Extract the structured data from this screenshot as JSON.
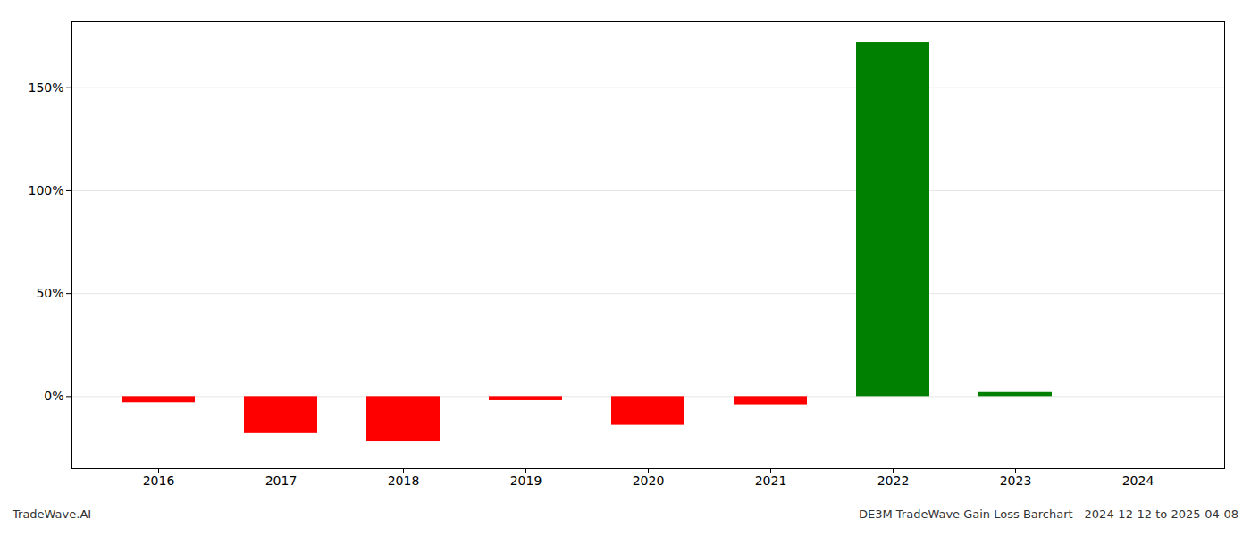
{
  "chart_data": {
    "type": "bar",
    "title": "DE3M TradeWave Gain Loss Barchart - 2024-12-12 to 2025-04-08",
    "annotations": [
      "TradeWave.AI"
    ],
    "categories": [
      "2016",
      "2017",
      "2018",
      "2019",
      "2020",
      "2021",
      "2022",
      "2023",
      "2024"
    ],
    "values": [
      -0.03,
      -0.18,
      -0.22,
      -0.02,
      -0.14,
      -0.04,
      1.72,
      0.02,
      0.0
    ],
    "colors": [
      "#ff0000",
      "#ff0000",
      "#ff0000",
      "#ff0000",
      "#ff0000",
      "#ff0000",
      "#008000",
      "#008000",
      "#008000"
    ],
    "ylim": [
      -0.35,
      1.82
    ],
    "yticks": [
      {
        "value": 0.0,
        "label": "0%"
      },
      {
        "value": 0.5,
        "label": "50%"
      },
      {
        "value": 1.0,
        "label": "100%"
      },
      {
        "value": 1.5,
        "label": "150%"
      }
    ],
    "grid": true
  }
}
